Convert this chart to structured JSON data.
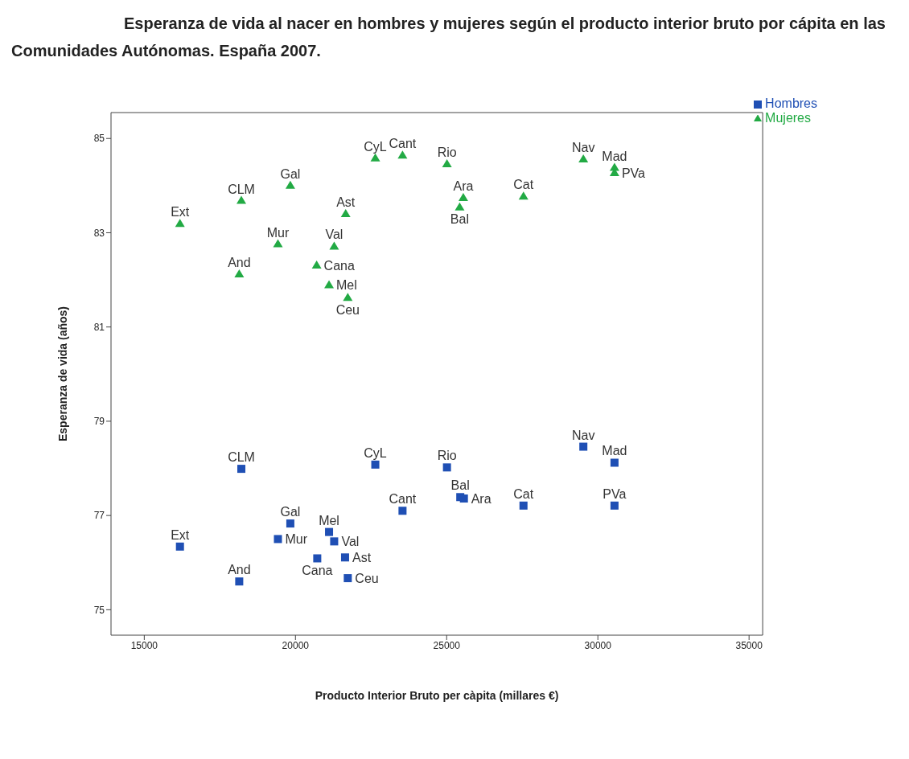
{
  "chart_data": {
    "type": "scatter",
    "title": "Esperanza de vida al nacer en hombres y mujeres según el producto interior bruto por cápita en las Comunidades Autónomas. España 2007.",
    "xlabel": "Producto Interior Bruto per càpita (millares €)",
    "ylabel": "Esperanza de vida (años)",
    "xlim": [
      13900,
      35450
    ],
    "ylim": [
      74.46,
      85.55
    ],
    "xticks": [
      15000,
      20000,
      25000,
      30000,
      35000
    ],
    "yticks": [
      75,
      77,
      79,
      81,
      83,
      85
    ],
    "grid": false,
    "legend": "top right",
    "series": [
      {
        "name": "Hombres",
        "color": "#1f4fb4",
        "marker": "square",
        "x": [
          18210,
          22640,
          25010,
          25450,
          25570,
          23540,
          19830,
          21110,
          19420,
          21280,
          16180,
          20720,
          21640,
          21730,
          18140,
          29520,
          30550,
          27540,
          30550
        ],
        "values": [
          77.99,
          78.08,
          78.02,
          77.39,
          77.36,
          77.1,
          76.83,
          76.65,
          76.5,
          76.45,
          76.34,
          76.09,
          76.11,
          75.67,
          75.6,
          78.46,
          78.12,
          77.21,
          77.21
        ]
      },
      {
        "name": "Mujeres",
        "color": "#22aa44",
        "marker": "triangle",
        "x": [
          16180,
          18210,
          19830,
          22640,
          23540,
          25010,
          25550,
          25430,
          21660,
          19420,
          21280,
          20700,
          18140,
          21110,
          21730,
          29520,
          30550,
          30550,
          27540
        ],
        "values": [
          83.19,
          83.68,
          84.0,
          84.58,
          84.64,
          84.46,
          83.74,
          83.54,
          83.4,
          82.76,
          82.71,
          82.31,
          82.12,
          81.89,
          81.62,
          84.56,
          84.38,
          84.27,
          83.77
        ]
      }
    ],
    "annotations": [
      {
        "text": "CLM",
        "x": 18210,
        "y": 77.99
      },
      {
        "text": "CyL",
        "x": 22640,
        "y": 78.08
      },
      {
        "text": "Rio",
        "x": 25010,
        "y": 78.02
      },
      {
        "text": "Bal",
        "x": 25450,
        "y": 77.39
      },
      {
        "text": "Ara",
        "x": 25570,
        "y": 77.36
      },
      {
        "text": "Cant",
        "x": 23540,
        "y": 77.1
      },
      {
        "text": "Gal",
        "x": 19830,
        "y": 76.83
      },
      {
        "text": "Mel",
        "x": 21110,
        "y": 76.65
      },
      {
        "text": "Mur",
        "x": 19420,
        "y": 76.5
      },
      {
        "text": "Val",
        "x": 21280,
        "y": 76.45
      },
      {
        "text": "Ext",
        "x": 16180,
        "y": 76.34
      },
      {
        "text": "Cana",
        "x": 20720,
        "y": 76.09
      },
      {
        "text": "Ast",
        "x": 21640,
        "y": 76.11
      },
      {
        "text": "Ceu",
        "x": 21730,
        "y": 75.67
      },
      {
        "text": "And",
        "x": 18140,
        "y": 75.6
      },
      {
        "text": "Nav",
        "x": 29520,
        "y": 78.46
      },
      {
        "text": "Mad",
        "x": 30550,
        "y": 78.12
      },
      {
        "text": "Cat",
        "x": 27540,
        "y": 77.21
      },
      {
        "text": "PVa",
        "x": 30550,
        "y": 77.21
      },
      {
        "text": "Ext",
        "x": 16180,
        "y": 83.19
      },
      {
        "text": "CLM",
        "x": 18210,
        "y": 83.68
      },
      {
        "text": "Gal",
        "x": 19830,
        "y": 84.0
      },
      {
        "text": "CyL",
        "x": 22640,
        "y": 84.58
      },
      {
        "text": "Cant",
        "x": 23540,
        "y": 84.64
      },
      {
        "text": "Rio",
        "x": 25010,
        "y": 84.46
      },
      {
        "text": "Ara",
        "x": 25550,
        "y": 83.74
      },
      {
        "text": "Bal",
        "x": 25430,
        "y": 83.54
      },
      {
        "text": "Ast",
        "x": 21660,
        "y": 83.4
      },
      {
        "text": "Mur",
        "x": 19420,
        "y": 82.76
      },
      {
        "text": "Val",
        "x": 21280,
        "y": 82.71
      },
      {
        "text": "Cana",
        "x": 20700,
        "y": 82.31
      },
      {
        "text": "And",
        "x": 18140,
        "y": 82.12
      },
      {
        "text": "Mel",
        "x": 21110,
        "y": 81.89
      },
      {
        "text": "Ceu",
        "x": 21730,
        "y": 81.62
      },
      {
        "text": "Nav",
        "x": 29520,
        "y": 84.56
      },
      {
        "text": "Mad",
        "x": 30550,
        "y": 84.38
      },
      {
        "text": "PVa",
        "x": 30550,
        "y": 84.27
      },
      {
        "text": "Cat",
        "x": 27540,
        "y": 83.77
      }
    ]
  }
}
